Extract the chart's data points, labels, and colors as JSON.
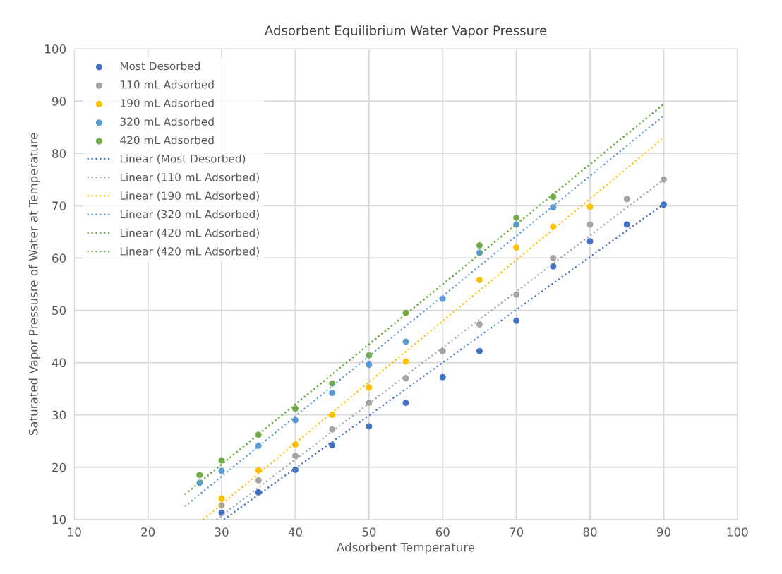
{
  "chart_data": {
    "type": "scatter",
    "title": "Adsorbent Equilibrium Water Vapor Pressure",
    "xlabel": "Adsorbent Temperature",
    "ylabel": "Saturated Vapor Pressusre of Water at Temperature",
    "xlim": [
      10,
      100
    ],
    "ylim": [
      10,
      100
    ],
    "xticks": [
      10,
      20,
      30,
      40,
      50,
      60,
      70,
      80,
      90,
      100
    ],
    "yticks": [
      10,
      20,
      30,
      40,
      50,
      60,
      70,
      80,
      90,
      100
    ],
    "grid": true,
    "legend": "top left",
    "marker": "circle",
    "series": [
      {
        "name": "Most Desorbed",
        "color": "#4472c4",
        "x": [
          30,
          35,
          40,
          45,
          50,
          55,
          60,
          65,
          70,
          75,
          80,
          85,
          90
        ],
        "values": [
          11.3,
          15.2,
          19.5,
          24.2,
          27.8,
          32.3,
          37.2,
          42.2,
          48,
          58.4,
          63.2,
          66.4,
          70.2
        ]
      },
      {
        "name": "110 mL Adsorbed",
        "color": "#a5a5a5",
        "x": [
          30,
          35,
          40,
          45,
          50,
          55,
          60,
          65,
          70,
          75,
          80,
          85,
          90
        ],
        "values": [
          12.7,
          17.5,
          22.2,
          27.2,
          32.3,
          37,
          42.2,
          47.3,
          53,
          60,
          66.4,
          71.3,
          75
        ]
      },
      {
        "name": "190 mL Adsorbed",
        "color": "#ffc000",
        "x": [
          30,
          35,
          40,
          45,
          50,
          55,
          65,
          70,
          75,
          80
        ],
        "values": [
          14,
          19.4,
          24.3,
          30,
          35.2,
          40.2,
          55.8,
          62,
          66,
          69.8
        ]
      },
      {
        "name": "320 mL Adsorbed",
        "color": "#5b9bd5",
        "x": [
          27,
          30,
          35,
          40,
          45,
          50,
          55,
          60,
          65,
          70,
          75
        ],
        "values": [
          17,
          19.3,
          24.1,
          29,
          34.2,
          39.6,
          44,
          52.2,
          61,
          66.4,
          69.7
        ]
      },
      {
        "name": "420 mL Adsorbed",
        "color": "#70ad47",
        "x": [
          27,
          30,
          35,
          40,
          45,
          50,
          55,
          65,
          70,
          75
        ],
        "values": [
          18.5,
          21.3,
          26.2,
          31.2,
          36,
          41.4,
          49.5,
          62.4,
          67.7,
          71.7
        ]
      },
      {
        "name": "Linear (Most Desorbed)",
        "type": "line",
        "line_style": "dotted",
        "marker": "none",
        "color": "#4472c4",
        "x": [
          30.3,
          90
        ],
        "values": [
          10,
          70.3
        ]
      },
      {
        "name": "Linear (110 mL Adsorbed)",
        "type": "line",
        "line_style": "dotted",
        "marker": "none",
        "color": "#a5a5a5",
        "x": [
          29.3,
          90
        ],
        "values": [
          10,
          75
        ]
      },
      {
        "name": "Linear (190 mL Adsorbed)",
        "type": "line",
        "line_style": "dotted",
        "marker": "none",
        "color": "#ffc000",
        "x": [
          27.5,
          90
        ],
        "values": [
          10,
          83
        ]
      },
      {
        "name": "Linear (320 mL Adsorbed)",
        "type": "line",
        "line_style": "dotted",
        "marker": "none",
        "color": "#5b9bd5",
        "x": [
          25,
          90
        ],
        "values": [
          12.5,
          87.2
        ]
      },
      {
        "name": "Linear (420 mL Adsorbed)",
        "type": "line",
        "line_style": "dotted",
        "marker": "none",
        "color": "#70ad47",
        "x": [
          25,
          90
        ],
        "values": [
          14.8,
          89.4
        ]
      },
      {
        "name": "Linear (420 mL Adsorbed)",
        "type": "line",
        "line_style": "dotted",
        "marker": "none",
        "color": "#70ad47",
        "x": [
          25,
          90
        ],
        "values": [
          14.8,
          89.4
        ]
      }
    ]
  }
}
